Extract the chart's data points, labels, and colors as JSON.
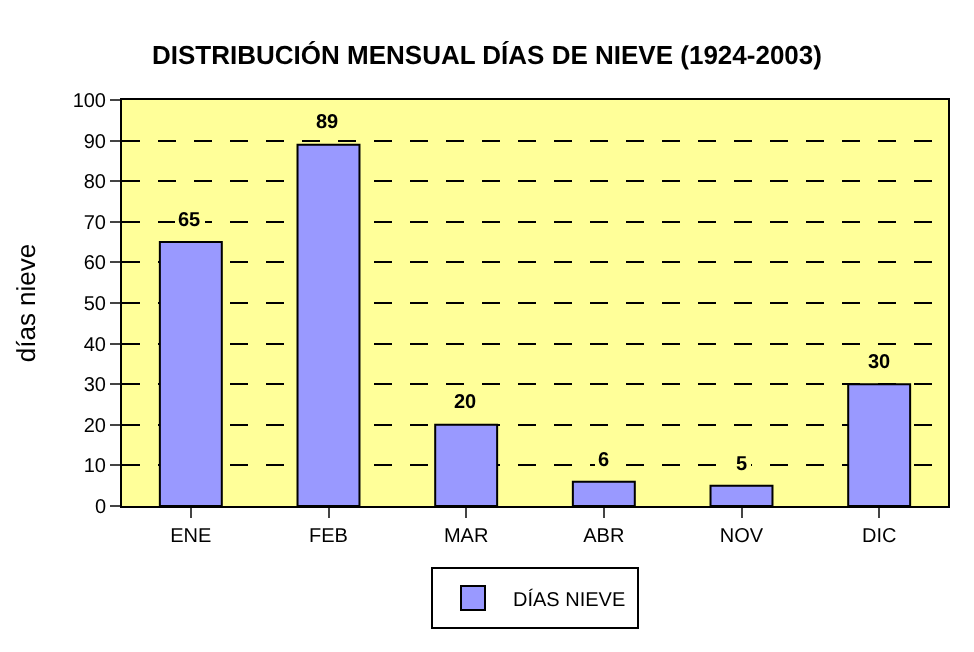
{
  "chart_data": {
    "type": "bar",
    "title": "DISTRIBUCIÓN MENSUAL DÍAS DE NIEVE (1924-2003)",
    "ylabel": "días nieve",
    "categories": [
      "ENE",
      "FEB",
      "MAR",
      "ABR",
      "NOV",
      "DIC"
    ],
    "series": [
      {
        "name": "DÍAS NIEVE",
        "color": "#9999ff",
        "values": [
          65,
          89,
          20,
          6,
          5,
          30
        ]
      }
    ],
    "ylim": [
      0,
      100
    ],
    "yticks": [
      0,
      10,
      20,
      30,
      40,
      50,
      60,
      70,
      80,
      90,
      100
    ],
    "grid": "y",
    "legend": "bottom",
    "data_labels": true
  }
}
